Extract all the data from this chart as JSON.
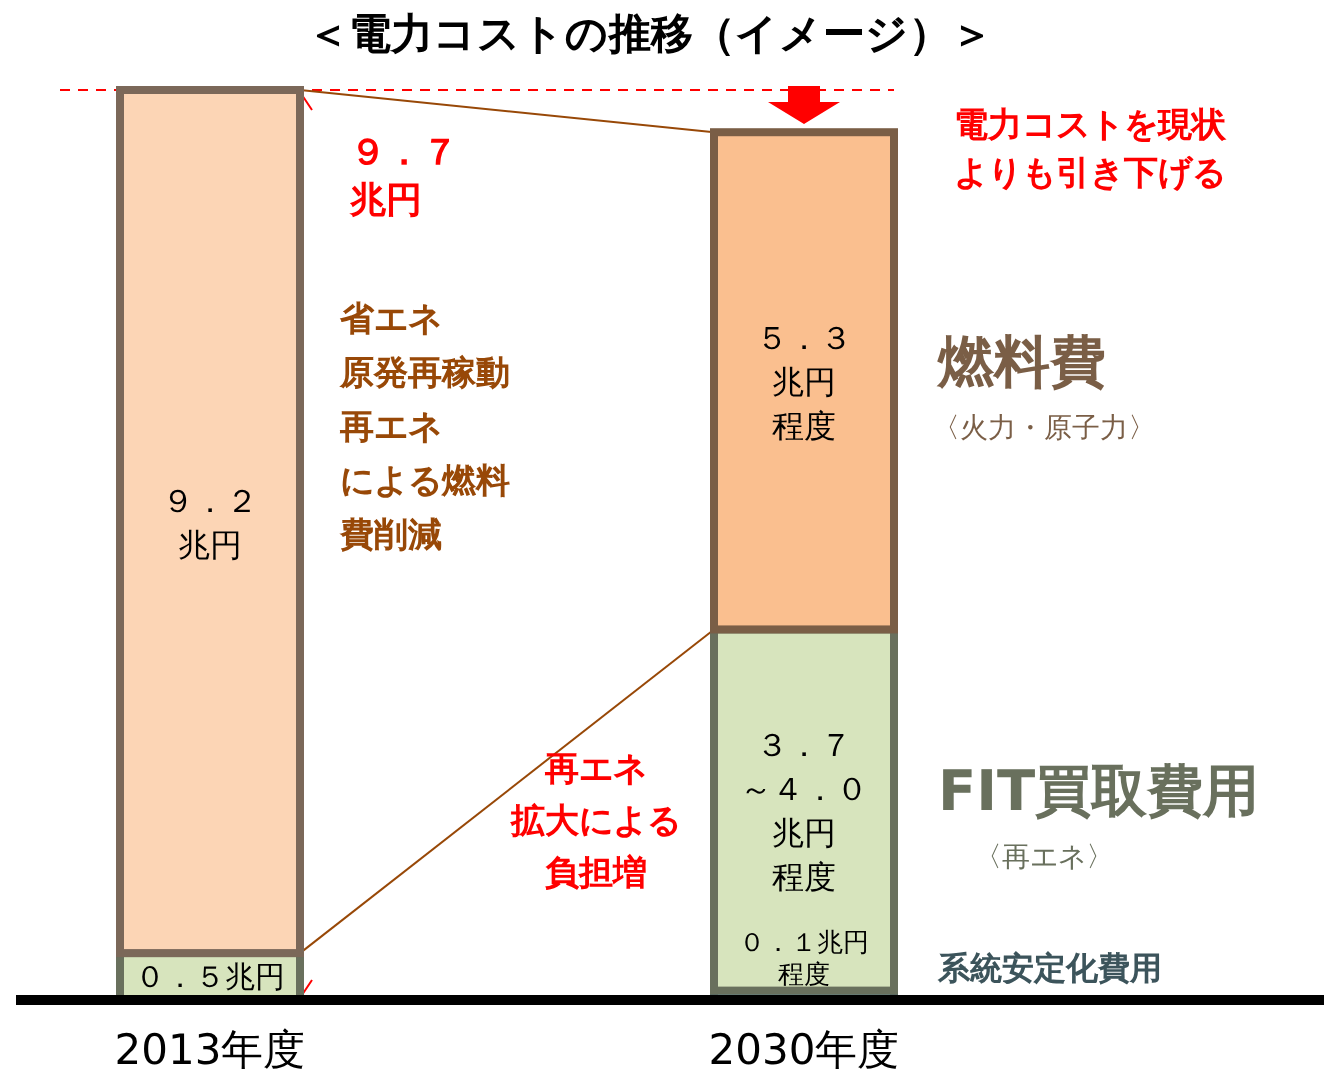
{
  "chart_data": {
    "type": "bar",
    "title": "＜電力コストの推移（イメージ）＞",
    "categories": [
      "2013年度",
      "2030年度"
    ],
    "stacked": true,
    "series": [
      {
        "name": "系統安定化費用",
        "color": "#93cddd",
        "values": [
          null,
          0.1
        ],
        "value_labels": [
          null,
          "０．１兆円程度"
        ]
      },
      {
        "name": "FIT買取費用",
        "color": "#d7e4bd",
        "values": [
          0.5,
          3.85
        ],
        "value_labels": [
          "０．５兆円",
          "３．７～４．０兆円程度"
        ]
      },
      {
        "name": "燃料費",
        "color": "#fabf8f",
        "colors": [
          "#fcd5b5",
          "#fabf8f"
        ],
        "values": [
          9.2,
          5.3
        ],
        "value_labels": [
          "９．２兆円",
          "５．３兆円程度"
        ]
      }
    ],
    "ref_lines": [
      {
        "axis": "y",
        "value": 9.7,
        "color": "#ff0000",
        "line_style": "dashed"
      }
    ],
    "annotations": [
      "９．７兆円",
      "省エネ原発再稼動再エネによる燃料費削減",
      "電力コストを現状よりも引き下げる",
      "再エネ拡大による負担増",
      "〈火力・原子力〉",
      "〈再エネ〉"
    ]
  }
}
